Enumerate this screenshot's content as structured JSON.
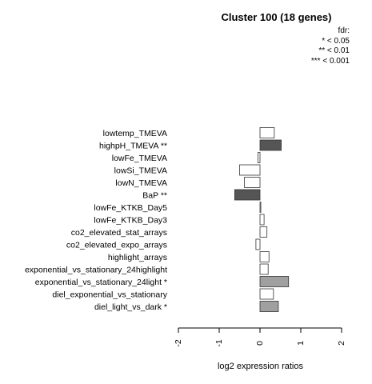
{
  "chart_data": {
    "type": "bar",
    "orientation": "horizontal",
    "title": "Cluster 100 (18 genes)",
    "xlabel": "log2 expression ratios",
    "ylabel": "",
    "xlim": [
      -2,
      2
    ],
    "xticks": [
      "-2",
      "-1",
      "0",
      "1",
      "2"
    ],
    "legend": {
      "placement": "top-right",
      "title": "fdr:",
      "entries": [
        "* < 0.05",
        "** < 0.01",
        "*** < 0.001"
      ]
    },
    "categories": [
      "lowtemp_TMEVA",
      "highpH_TMEVA **",
      "lowFe_TMEVA",
      "lowSi_TMEVA",
      "lowN_TMEVA",
      "BaP **",
      "lowFe_KTKB_Day5",
      "lowFe_KTKB_Day3",
      "co2_elevated_stat_arrays",
      "co2_elevated_expo_arrays",
      "highlight_arrays",
      "exponential_vs_stationary_24highlight",
      "exponential_vs_stationary_24light *",
      "diel_exponential_vs_stationary",
      "diel_light_vs_dark *"
    ],
    "values": [
      0.35,
      0.52,
      -0.05,
      -0.5,
      -0.38,
      -0.62,
      0.02,
      0.1,
      0.17,
      -0.1,
      0.22,
      0.2,
      0.7,
      0.33,
      0.45
    ],
    "bar_colors": [
      "#ffffff",
      "#555555",
      "#ffffff",
      "#ffffff",
      "#ffffff",
      "#555555",
      "#ffffff",
      "#ffffff",
      "#ffffff",
      "#ffffff",
      "#ffffff",
      "#ffffff",
      "#a0a0a0",
      "#ffffff",
      "#a0a0a0"
    ]
  }
}
